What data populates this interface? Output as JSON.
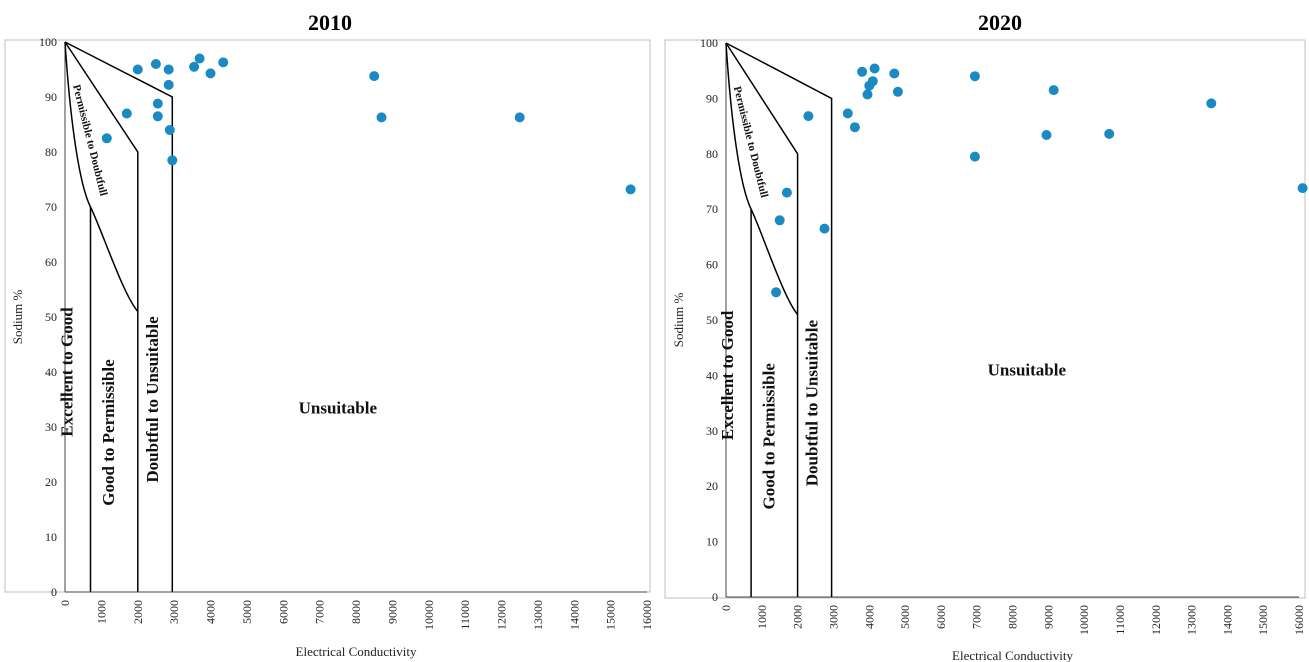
{
  "chart_data": [
    {
      "type": "scatter",
      "title": "2010",
      "xlabel": "Electrical Conductivity",
      "ylabel": "Sodium %",
      "xlim": [
        0,
        16000
      ],
      "ylim": [
        0,
        100
      ],
      "x_ticks": [
        "0",
        "1000",
        "2000",
        "3000",
        "4000",
        "5000",
        "6000",
        "7000",
        "8000",
        "9000",
        "10000",
        "11000",
        "12000",
        "13000",
        "14000",
        "15000",
        "16000"
      ],
      "y_ticks": [
        "0",
        "10",
        "20",
        "30",
        "40",
        "50",
        "60",
        "70",
        "80",
        "90",
        "100"
      ],
      "zones": {
        "excellent": "Excellent to Good",
        "good": "Good to Permissible",
        "permissible_doubtful": "Permissible to Doubtfull",
        "doubtful": "Doubtful to Unsuitable",
        "unsuitable": "Unsuitable"
      },
      "points": [
        {
          "x": 1150,
          "y": 82.5
        },
        {
          "x": 1700,
          "y": 87
        },
        {
          "x": 2000,
          "y": 95
        },
        {
          "x": 2500,
          "y": 96
        },
        {
          "x": 2550,
          "y": 88.8
        },
        {
          "x": 2550,
          "y": 86.5
        },
        {
          "x": 2850,
          "y": 95
        },
        {
          "x": 2850,
          "y": 92.2
        },
        {
          "x": 2880,
          "y": 84
        },
        {
          "x": 2950,
          "y": 78.5
        },
        {
          "x": 3550,
          "y": 95.5
        },
        {
          "x": 3700,
          "y": 97
        },
        {
          "x": 4000,
          "y": 94.3
        },
        {
          "x": 4350,
          "y": 96.3
        },
        {
          "x": 8500,
          "y": 93.8
        },
        {
          "x": 8700,
          "y": 86.3
        },
        {
          "x": 12500,
          "y": 86.3
        },
        {
          "x": 15550,
          "y": 73.2
        }
      ]
    },
    {
      "type": "scatter",
      "title": "2020",
      "xlabel": "Electrical Conductivity",
      "ylabel": "Sodium %",
      "xlim": [
        0,
        16000
      ],
      "ylim": [
        0,
        100
      ],
      "x_ticks": [
        "0",
        "1000",
        "2000",
        "3000",
        "4000",
        "5000",
        "6000",
        "7000",
        "8000",
        "9000",
        "10000",
        "11000",
        "12000",
        "13000",
        "14000",
        "15000",
        "16000"
      ],
      "y_ticks": [
        "0",
        "10",
        "20",
        "30",
        "40",
        "50",
        "60",
        "70",
        "80",
        "90",
        "100"
      ],
      "zones": {
        "excellent": "Excellent to Good",
        "good": "Good to Permissible",
        "permissible_doubtful": "Permissible to Doubtfull",
        "doubtful": "Doubtful to Unsuitable",
        "unsuitable": "Unsuitable"
      },
      "points": [
        {
          "x": 1400,
          "y": 55
        },
        {
          "x": 1500,
          "y": 68
        },
        {
          "x": 1700,
          "y": 73
        },
        {
          "x": 2300,
          "y": 86.8
        },
        {
          "x": 2750,
          "y": 66.5
        },
        {
          "x": 3400,
          "y": 87.3
        },
        {
          "x": 3600,
          "y": 84.8
        },
        {
          "x": 3800,
          "y": 94.8
        },
        {
          "x": 3950,
          "y": 90.7
        },
        {
          "x": 4000,
          "y": 92.3
        },
        {
          "x": 4100,
          "y": 93.1
        },
        {
          "x": 4150,
          "y": 95.4
        },
        {
          "x": 4700,
          "y": 94.5
        },
        {
          "x": 4800,
          "y": 91.2
        },
        {
          "x": 6950,
          "y": 94
        },
        {
          "x": 6950,
          "y": 79.5
        },
        {
          "x": 8950,
          "y": 83.4
        },
        {
          "x": 9150,
          "y": 91.5
        },
        {
          "x": 10700,
          "y": 83.6
        },
        {
          "x": 13550,
          "y": 89.1
        },
        {
          "x": 16100,
          "y": 73.8
        }
      ]
    }
  ]
}
